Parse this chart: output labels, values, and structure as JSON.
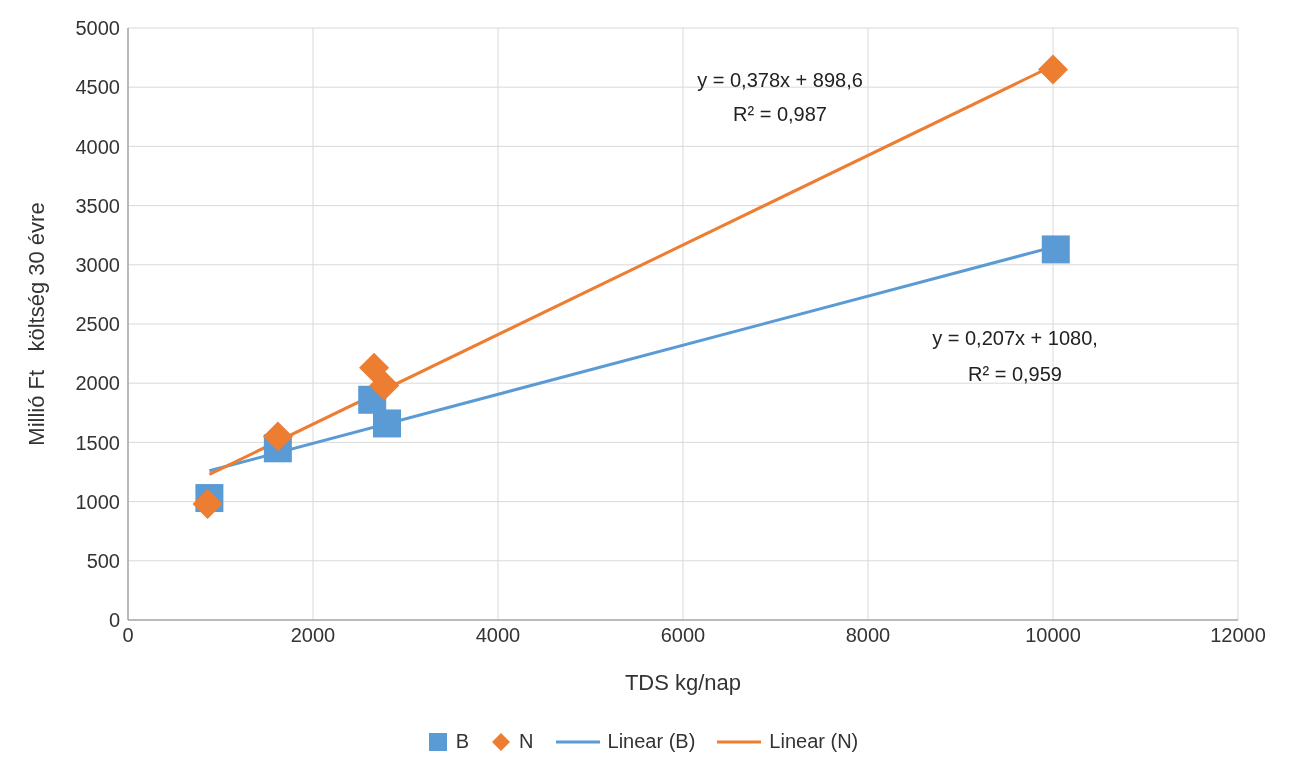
{
  "chart_data": {
    "type": "scatter",
    "xlabel": "TDS kg/nap",
    "ylabel": "Millió Ft   költség 30 évre",
    "xlim": [
      0,
      12000
    ],
    "xticks": [
      0,
      2000,
      4000,
      6000,
      8000,
      10000,
      12000
    ],
    "ylim": [
      0,
      5000
    ],
    "yticks": [
      0,
      500,
      1000,
      1500,
      2000,
      2500,
      3000,
      3500,
      4000,
      4500,
      5000
    ],
    "grid": true,
    "legend": "bottom",
    "series": [
      {
        "name": "B",
        "marker": "square",
        "color": "#5b9bd5",
        "x": [
          880,
          1620,
          2640,
          2800,
          10030
        ],
        "values": [
          1030,
          1450,
          1860,
          1660,
          3130
        ]
      },
      {
        "name": "N",
        "marker": "diamond",
        "color": "#ed7d31",
        "x": [
          860,
          1620,
          2660,
          2770,
          10000
        ],
        "values": [
          980,
          1550,
          2130,
          1980,
          4650
        ]
      },
      {
        "name": "Linear (B)",
        "type": "line",
        "marker": "none",
        "line_style": "solid",
        "color": "#5b9bd5",
        "x": [
          880,
          10050
        ],
        "values": [
          1260,
          3160
        ]
      },
      {
        "name": "Linear (N)",
        "type": "line",
        "marker": "none",
        "line_style": "solid",
        "color": "#ed7d31",
        "x": [
          880,
          10050
        ],
        "values": [
          1230,
          4700
        ]
      }
    ],
    "annotations": [
      "y = 0,378x + 898,6",
      "R² = 0,987",
      "y = 0,207x + 1080,",
      "R² = 0,959"
    ]
  }
}
